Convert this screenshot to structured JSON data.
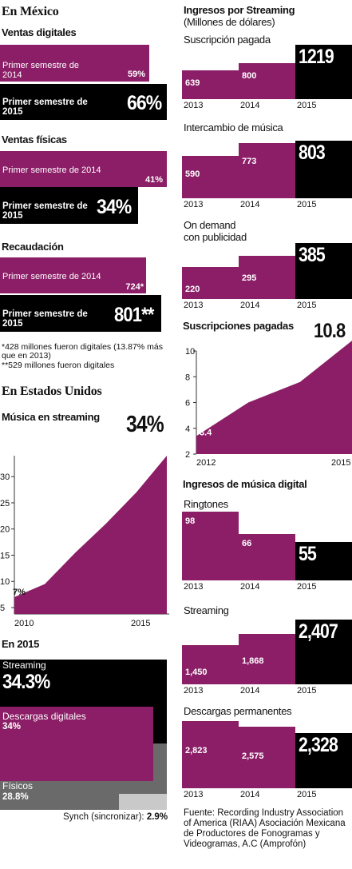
{
  "mexico": {
    "heading": "En México",
    "ventas_digitales": {
      "title": "Ventas digitales",
      "row1_label": "Primer semestre de 2014",
      "row1_value": "59%",
      "row2_label": "Primer semestre de 2015",
      "row2_value": "66%"
    },
    "ventas_fisicas": {
      "title": "Ventas físicas",
      "row1_label": "Primer semestre de 2014",
      "row1_value": "41%",
      "row2_label": "Primer semestre de 2015",
      "row2_value": "34%"
    },
    "recaudacion": {
      "title": "Recaudación",
      "row1_label": "Primer semestre de 2014",
      "row1_value": "724*",
      "row2_label": "Primer semestre de 2015",
      "row2_value": "801**"
    },
    "footnote1": "*428 millones fueron digitales (13.87% más que en 2013)",
    "footnote2": "**529 millones fueron digitales"
  },
  "usa": {
    "heading": "En Estados Unidos",
    "streaming_title": "Música en streaming",
    "big_value": "34%",
    "start_label": "7%",
    "en2015_title": "En 2015",
    "streaming_label": "Streaming",
    "streaming_value": "34.3%",
    "descargas_label": "Descargas digitales",
    "descargas_value": "34%",
    "fisicos_label": "Físicos",
    "fisicos_value": "28.8%",
    "synch_label": "Synch (sincronizar):",
    "synch_value": "2.9%"
  },
  "right": {
    "streaming_title": "Ingresos por Streaming",
    "streaming_sub": "(Millones de dólares)",
    "suscripcion_title": "Suscripción pagada",
    "intercambio_title": "Intercambio de música",
    "ondemand_title1": "On demand",
    "ondemand_title2": "con publicidad",
    "suscripciones_title": "Suscripciones pagadas",
    "suscripciones_big": "10.8",
    "suscripciones_start": "3.4",
    "digital_title": "Ingresos de música digital",
    "ringtones_title": "Ringtones",
    "streaming2_title": "Streaming",
    "descargas_title": "Descargas permanentes",
    "source": "Fuente: Recording Industry Association of America (RIAA) Asociación Mexicana de Productores de Fonogramas y Videogramas, A.C (Amprofón)"
  },
  "chart_data": [
    {
      "type": "bar",
      "id": "ventas_digitales",
      "title": "Ventas digitales",
      "categories": [
        "Primer semestre de 2014",
        "Primer semestre de 2015"
      ],
      "values": [
        59,
        66
      ],
      "unit": "%"
    },
    {
      "type": "bar",
      "id": "ventas_fisicas",
      "title": "Ventas físicas",
      "categories": [
        "Primer semestre de 2014",
        "Primer semestre de 2015"
      ],
      "values": [
        41,
        34
      ],
      "unit": "%"
    },
    {
      "type": "bar",
      "id": "recaudacion",
      "title": "Recaudación",
      "categories": [
        "Primer semestre de 2014",
        "Primer semestre de 2015"
      ],
      "values": [
        724,
        801
      ]
    },
    {
      "type": "area",
      "id": "musica_streaming",
      "title": "Música en streaming",
      "x": [
        2010,
        2011,
        2012,
        2013,
        2014,
        2015
      ],
      "y": [
        7,
        9.5,
        15.5,
        21,
        27,
        34
      ],
      "ylim": [
        5,
        34
      ],
      "yticks": [
        5,
        10,
        15,
        20,
        25,
        30
      ],
      "xticks": [
        2010,
        2015
      ]
    },
    {
      "type": "area",
      "id": "en_2015",
      "title": "En 2015",
      "categories": [
        "Streaming",
        "Descargas digitales",
        "Físicos",
        "Synch (sincronizar)"
      ],
      "values": [
        34.3,
        34,
        28.8,
        2.9
      ],
      "unit": "%"
    },
    {
      "type": "bar",
      "id": "suscripcion_pagada",
      "title": "Suscripción pagada",
      "categories": [
        "2013",
        "2014",
        "2015"
      ],
      "values": [
        639,
        800,
        1219
      ]
    },
    {
      "type": "bar",
      "id": "intercambio_musica",
      "title": "Intercambio de música",
      "categories": [
        "2013",
        "2014",
        "2015"
      ],
      "values": [
        590,
        773,
        803
      ]
    },
    {
      "type": "bar",
      "id": "on_demand",
      "title": "On demand con publicidad",
      "categories": [
        "2013",
        "2014",
        "2015"
      ],
      "values": [
        220,
        295,
        385
      ]
    },
    {
      "type": "area",
      "id": "suscripciones_pagadas",
      "title": "Suscripciones pagadas",
      "x": [
        2012,
        2013,
        2014,
        2015
      ],
      "y": [
        3.4,
        6.0,
        7.6,
        10.8
      ],
      "ylim": [
        2,
        10.8
      ],
      "yticks": [
        2,
        4,
        6,
        8,
        10
      ],
      "xticks": [
        2012,
        2015
      ]
    },
    {
      "type": "bar",
      "id": "ringtones",
      "title": "Ringtones",
      "categories": [
        "2013",
        "2014",
        "2015"
      ],
      "values": [
        98,
        66,
        55
      ]
    },
    {
      "type": "bar",
      "id": "streaming_digital",
      "title": "Streaming",
      "categories": [
        "2013",
        "2014",
        "2015"
      ],
      "values": [
        1450,
        1868,
        2407
      ],
      "labels": [
        "1,450",
        "1,868",
        "2,407"
      ]
    },
    {
      "type": "bar",
      "id": "descargas_permanentes",
      "title": "Descargas permanentes",
      "categories": [
        "2013",
        "2014",
        "2015"
      ],
      "values": [
        2823,
        2575,
        2328
      ],
      "labels": [
        "2,823",
        "2,575",
        "2,328"
      ]
    }
  ]
}
